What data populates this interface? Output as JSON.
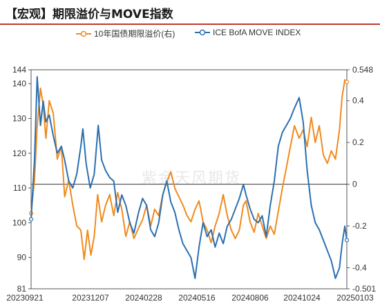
{
  "title": "【宏观】期限溢价与MOVE指数",
  "watermark": "紫金天风期货",
  "colors": {
    "series1": "#f08a1c",
    "series2": "#2a6fb0",
    "title_rule": "#c0392b"
  },
  "chart_data": {
    "type": "line",
    "legend": [
      "10年国债期限溢价(右)",
      "ICE BofA MOVE INDEX"
    ],
    "x_tick_labels": [
      "20230921",
      "20231207",
      "20240228",
      "20240516",
      "20240806",
      "20241024",
      "20250103"
    ],
    "x_range": [
      "2023-09-21",
      "2025-01-03"
    ],
    "y_left": {
      "range": [
        81,
        144
      ],
      "ticks": [
        81,
        90,
        100,
        110,
        120,
        130,
        140,
        144
      ]
    },
    "y_right": {
      "range": [
        -0.501,
        0.548
      ],
      "ticks": [
        -0.501,
        -0.4,
        -0.2,
        0,
        0.2,
        0.4,
        0.548
      ]
    },
    "series": [
      {
        "name": "10年国债期限溢价(右)",
        "axis": "right",
        "points": [
          [
            "2023-09-21",
            -0.14
          ],
          [
            "2023-09-26",
            0.02
          ],
          [
            "2023-09-30",
            0.28
          ],
          [
            "2023-10-05",
            0.46
          ],
          [
            "2023-10-09",
            0.38
          ],
          [
            "2023-10-13",
            0.22
          ],
          [
            "2023-10-18",
            0.4
          ],
          [
            "2023-10-24",
            0.34
          ],
          [
            "2023-10-30",
            0.12
          ],
          [
            "2023-11-05",
            0.18
          ],
          [
            "2023-11-10",
            -0.06
          ],
          [
            "2023-11-16",
            0.02
          ],
          [
            "2023-11-22",
            -0.1
          ],
          [
            "2023-11-28",
            -0.2
          ],
          [
            "2023-12-04",
            -0.22
          ],
          [
            "2023-12-09",
            -0.36
          ],
          [
            "2023-12-14",
            -0.22
          ],
          [
            "2023-12-19",
            -0.34
          ],
          [
            "2023-12-24",
            -0.25
          ],
          [
            "2023-12-29",
            -0.05
          ],
          [
            "2024-01-04",
            -0.18
          ],
          [
            "2024-01-10",
            -0.1
          ],
          [
            "2024-01-16",
            -0.05
          ],
          [
            "2024-01-22",
            -0.15
          ],
          [
            "2024-01-28",
            -0.04
          ],
          [
            "2024-02-03",
            -0.12
          ],
          [
            "2024-02-09",
            -0.25
          ],
          [
            "2024-02-15",
            -0.18
          ],
          [
            "2024-02-21",
            -0.26
          ],
          [
            "2024-02-28",
            -0.21
          ],
          [
            "2024-03-05",
            -0.17
          ],
          [
            "2024-03-11",
            -0.1
          ],
          [
            "2024-03-17",
            -0.2
          ],
          [
            "2024-03-23",
            -0.12
          ],
          [
            "2024-03-29",
            -0.15
          ],
          [
            "2024-04-04",
            -0.05
          ],
          [
            "2024-04-10",
            0.01
          ],
          [
            "2024-04-16",
            0.06
          ],
          [
            "2024-04-22",
            -0.02
          ],
          [
            "2024-04-28",
            -0.06
          ],
          [
            "2024-05-04",
            -0.1
          ],
          [
            "2024-05-10",
            -0.15
          ],
          [
            "2024-05-16",
            -0.18
          ],
          [
            "2024-05-22",
            -0.12
          ],
          [
            "2024-05-28",
            -0.08
          ],
          [
            "2024-06-03",
            -0.18
          ],
          [
            "2024-06-09",
            -0.22
          ],
          [
            "2024-06-15",
            -0.28
          ],
          [
            "2024-06-21",
            -0.2
          ],
          [
            "2024-06-27",
            -0.14
          ],
          [
            "2024-07-03",
            -0.05
          ],
          [
            "2024-07-09",
            -0.15
          ],
          [
            "2024-07-15",
            -0.22
          ],
          [
            "2024-07-21",
            -0.26
          ],
          [
            "2024-07-27",
            -0.22
          ],
          [
            "2024-08-02",
            -0.1
          ],
          [
            "2024-08-06",
            -0.08
          ],
          [
            "2024-08-12",
            -0.18
          ],
          [
            "2024-08-18",
            -0.23
          ],
          [
            "2024-08-24",
            -0.14
          ],
          [
            "2024-08-30",
            -0.2
          ],
          [
            "2024-09-05",
            -0.26
          ],
          [
            "2024-09-11",
            -0.2
          ],
          [
            "2024-09-17",
            -0.24
          ],
          [
            "2024-09-23",
            -0.13
          ],
          [
            "2024-09-29",
            -0.02
          ],
          [
            "2024-10-05",
            0.08
          ],
          [
            "2024-10-11",
            0.18
          ],
          [
            "2024-10-17",
            0.28
          ],
          [
            "2024-10-24",
            0.22
          ],
          [
            "2024-10-30",
            0.26
          ],
          [
            "2024-11-05",
            0.18
          ],
          [
            "2024-11-11",
            0.32
          ],
          [
            "2024-11-17",
            0.2
          ],
          [
            "2024-11-23",
            0.28
          ],
          [
            "2024-11-29",
            0.14
          ],
          [
            "2024-12-05",
            0.1
          ],
          [
            "2024-12-11",
            0.16
          ],
          [
            "2024-12-17",
            0.12
          ],
          [
            "2024-12-23",
            0.26
          ],
          [
            "2024-12-27",
            0.42
          ],
          [
            "2024-12-31",
            0.5
          ],
          [
            "2025-01-03",
            0.49
          ]
        ]
      },
      {
        "name": "ICE BofA MOVE INDEX",
        "axis": "left",
        "points": [
          [
            "2023-09-21",
            101
          ],
          [
            "2023-09-26",
            118
          ],
          [
            "2023-09-30",
            142
          ],
          [
            "2023-10-05",
            128
          ],
          [
            "2023-10-09",
            135
          ],
          [
            "2023-10-13",
            129
          ],
          [
            "2023-10-18",
            131
          ],
          [
            "2023-10-24",
            125
          ],
          [
            "2023-10-30",
            120
          ],
          [
            "2023-11-05",
            122
          ],
          [
            "2023-11-10",
            118
          ],
          [
            "2023-11-16",
            112
          ],
          [
            "2023-11-22",
            110
          ],
          [
            "2023-11-28",
            114
          ],
          [
            "2023-12-04",
            122
          ],
          [
            "2023-12-07",
            127
          ],
          [
            "2023-12-12",
            117
          ],
          [
            "2023-12-18",
            110
          ],
          [
            "2023-12-24",
            114
          ],
          [
            "2023-12-30",
            128
          ],
          [
            "2024-01-04",
            118
          ],
          [
            "2024-01-10",
            115
          ],
          [
            "2024-01-16",
            113
          ],
          [
            "2024-01-22",
            112
          ],
          [
            "2024-01-28",
            103
          ],
          [
            "2024-02-03",
            108
          ],
          [
            "2024-02-09",
            105
          ],
          [
            "2024-02-15",
            100
          ],
          [
            "2024-02-21",
            97
          ],
          [
            "2024-02-28",
            103
          ],
          [
            "2024-03-05",
            107
          ],
          [
            "2024-03-11",
            105
          ],
          [
            "2024-03-17",
            98
          ],
          [
            "2024-03-23",
            96
          ],
          [
            "2024-03-29",
            100
          ],
          [
            "2024-04-04",
            108
          ],
          [
            "2024-04-10",
            112
          ],
          [
            "2024-04-16",
            106
          ],
          [
            "2024-04-22",
            103
          ],
          [
            "2024-04-28",
            98
          ],
          [
            "2024-05-04",
            94
          ],
          [
            "2024-05-10",
            92
          ],
          [
            "2024-05-16",
            90
          ],
          [
            "2024-05-22",
            84
          ],
          [
            "2024-05-28",
            93
          ],
          [
            "2024-06-03",
            100
          ],
          [
            "2024-06-09",
            96
          ],
          [
            "2024-06-15",
            98
          ],
          [
            "2024-06-21",
            93
          ],
          [
            "2024-06-27",
            97
          ],
          [
            "2024-07-03",
            94
          ],
          [
            "2024-07-09",
            99
          ],
          [
            "2024-07-15",
            101
          ],
          [
            "2024-07-21",
            104
          ],
          [
            "2024-07-27",
            107
          ],
          [
            "2024-08-02",
            111
          ],
          [
            "2024-08-06",
            108
          ],
          [
            "2024-08-12",
            104
          ],
          [
            "2024-08-18",
            101
          ],
          [
            "2024-08-24",
            100
          ],
          [
            "2024-08-30",
            102
          ],
          [
            "2024-09-05",
            96
          ],
          [
            "2024-09-11",
            105
          ],
          [
            "2024-09-17",
            112
          ],
          [
            "2024-09-23",
            122
          ],
          [
            "2024-09-29",
            126
          ],
          [
            "2024-10-05",
            128
          ],
          [
            "2024-10-11",
            130
          ],
          [
            "2024-10-17",
            133
          ],
          [
            "2024-10-24",
            136
          ],
          [
            "2024-10-30",
            129
          ],
          [
            "2024-11-05",
            115
          ],
          [
            "2024-11-11",
            105
          ],
          [
            "2024-11-17",
            100
          ],
          [
            "2024-11-23",
            98
          ],
          [
            "2024-11-29",
            95
          ],
          [
            "2024-12-05",
            92
          ],
          [
            "2024-12-11",
            89
          ],
          [
            "2024-12-17",
            84
          ],
          [
            "2024-12-23",
            87
          ],
          [
            "2024-12-27",
            94
          ],
          [
            "2024-12-31",
            99
          ],
          [
            "2025-01-03",
            95
          ]
        ]
      }
    ]
  }
}
